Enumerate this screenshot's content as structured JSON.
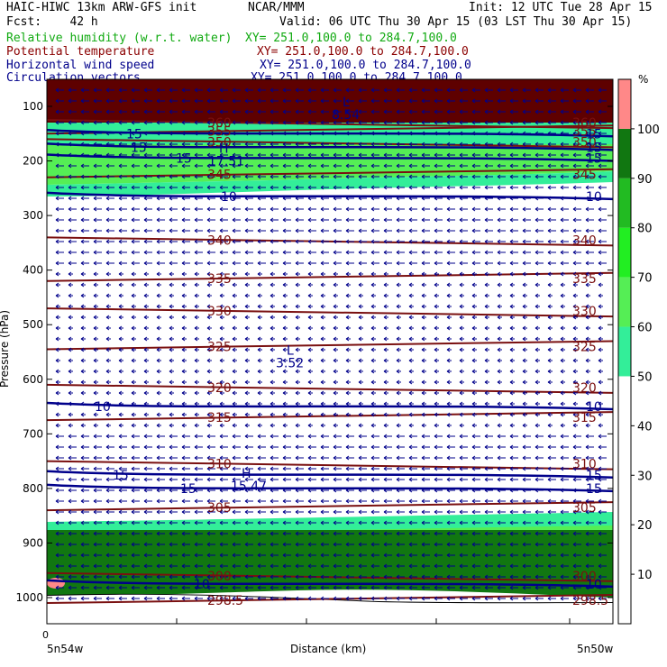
{
  "header": {
    "title": "HAIC-HIWC 13km ARW-GFS init",
    "org": "NCAR/MMM",
    "init": "Init: 12 UTC Tue 28 Apr 15",
    "fcst": "Fcst:    42 h",
    "valid": "Valid: 06 UTC Thu 30 Apr 15 (03 LST Thu 30 Apr 15)",
    "fields": [
      {
        "name": "Relative humidity (w.r.t. water)",
        "xy": "XY= 251.0,100.0 to 284.7,100.0",
        "color": "#11aa11"
      },
      {
        "name": "Potential temperature",
        "xy": "XY= 251.0,100.0 to 284.7,100.0",
        "color": "#8b0000"
      },
      {
        "name": "Horizontal wind speed",
        "xy": "XY= 251.0,100.0 to 284.7,100.0",
        "color": "#00008b"
      },
      {
        "name": "Circulation vectors",
        "xy": "XY= 251.0,100.0 to 284.7,100.0",
        "color": "#00008b"
      }
    ]
  },
  "chart_data": {
    "type": "heatmap",
    "ylabel": "Pressure (hPa)",
    "xlabel": "Distance (km)",
    "x_tick_labels": [
      "5n54w",
      "0",
      "5n50w"
    ],
    "y_ticks": [
      100,
      200,
      300,
      400,
      500,
      600,
      700,
      800,
      900,
      1000
    ],
    "colorbar": {
      "unit": "%",
      "ticks": [
        10,
        20,
        30,
        40,
        50,
        60,
        70,
        80,
        90,
        100
      ],
      "bins": [
        {
          "from": 50,
          "to": 60,
          "color": "#33ee99"
        },
        {
          "from": 60,
          "to": 70,
          "color": "#55ee55"
        },
        {
          "from": 70,
          "to": 80,
          "color": "#22ee22"
        },
        {
          "from": 80,
          "to": 90,
          "color": "#22bb22"
        },
        {
          "from": 90,
          "to": 100,
          "color": "#117711"
        },
        {
          "from": 100,
          "to": 110,
          "color": "#ff8888"
        }
      ]
    },
    "theta_contours": [
      {
        "label": "360",
        "p": 130
      },
      {
        "label": "355",
        "p": 145
      },
      {
        "label": "350",
        "p": 165
      },
      {
        "label": "345",
        "p": 225
      },
      {
        "label": "340",
        "p": 345
      },
      {
        "label": "335",
        "p": 415
      },
      {
        "label": "330",
        "p": 475
      },
      {
        "label": "325",
        "p": 540
      },
      {
        "label": "320",
        "p": 615
      },
      {
        "label": "315",
        "p": 670
      },
      {
        "label": "310",
        "p": 755
      },
      {
        "label": "305",
        "p": 835
      },
      {
        "label": "300",
        "p": 960
      },
      {
        "label": "298.5",
        "p": 1005
      }
    ],
    "speed_contours": [
      {
        "label": "15",
        "p": 175
      },
      {
        "label": "15",
        "p": 195
      },
      {
        "label": "15",
        "p": 150
      },
      {
        "label": "10",
        "p": 265
      },
      {
        "label": "10",
        "p": 650
      },
      {
        "label": "15",
        "p": 775
      },
      {
        "label": "15",
        "p": 800
      },
      {
        "label": "10",
        "p": 975
      }
    ],
    "extrema": [
      {
        "mark": "L",
        "value": "8.54",
        "p": 100
      },
      {
        "mark": "H",
        "value": "17.51",
        "p": 185
      },
      {
        "mark": "L",
        "value": "3.52",
        "p": 555
      },
      {
        "mark": "H",
        "value": "15.47",
        "p": 780
      }
    ]
  }
}
